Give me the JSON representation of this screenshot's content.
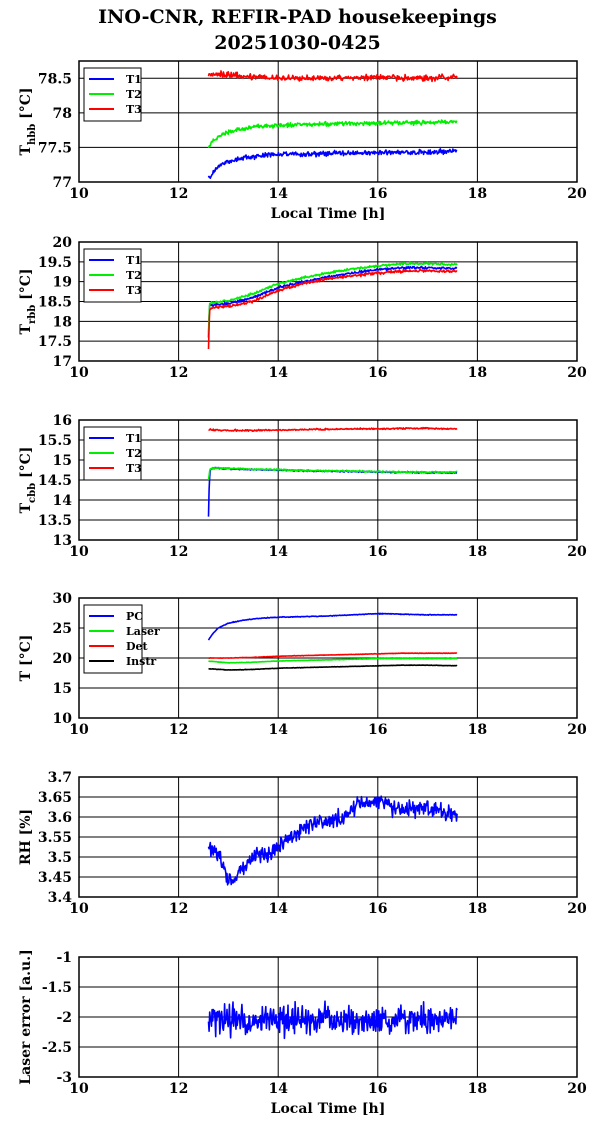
{
  "title": {
    "line1": "INO-CNR, REFIR-PAD housekeepings",
    "line2": "20251030-0425"
  },
  "chart_data": [
    {
      "type": "line",
      "id": "hbb",
      "xlabel": "Local Time [h]",
      "ylabel": "T_hbb [°C]",
      "ylabel_main": "T",
      "ylabel_sub": "hbb",
      "ylabel_rest": " [°C]",
      "xlim": [
        10,
        20
      ],
      "ylim": [
        77,
        78.75
      ],
      "xticks": [
        10,
        12,
        14,
        16,
        18,
        20
      ],
      "yticks": [
        77,
        77.5,
        78,
        78.5
      ],
      "ytick_labels": [
        "77",
        "77.5",
        "78",
        "78.5"
      ],
      "grid": true,
      "legend": "top-left",
      "series": [
        {
          "name": "T1",
          "color": "#0000ff",
          "x": [
            12.6,
            12.7,
            12.8,
            12.9,
            13.0,
            13.2,
            13.4,
            13.6,
            13.8,
            14.0,
            14.5,
            15.0,
            15.5,
            16.0,
            16.5,
            17.0,
            17.6
          ],
          "y": [
            77.05,
            77.15,
            77.22,
            77.27,
            77.3,
            77.33,
            77.36,
            77.38,
            77.39,
            77.4,
            77.4,
            77.41,
            77.42,
            77.42,
            77.43,
            77.43,
            77.45
          ],
          "noise": 0.03
        },
        {
          "name": "T2",
          "color": "#00ee00",
          "x": [
            12.6,
            12.7,
            12.8,
            12.9,
            13.0,
            13.2,
            13.4,
            13.6,
            13.8,
            14.0,
            14.5,
            15.0,
            15.5,
            16.0,
            16.5,
            17.0,
            17.6
          ],
          "y": [
            77.5,
            77.6,
            77.66,
            77.7,
            77.73,
            77.76,
            77.78,
            77.8,
            77.81,
            77.82,
            77.83,
            77.84,
            77.85,
            77.85,
            77.86,
            77.86,
            77.87
          ],
          "noise": 0.025
        },
        {
          "name": "T3",
          "color": "#ff0000",
          "x": [
            12.6,
            12.7,
            13.0,
            13.5,
            14.0,
            14.5,
            15.0,
            15.5,
            16.0,
            16.5,
            17.0,
            17.6
          ],
          "y": [
            78.55,
            78.57,
            78.55,
            78.52,
            78.51,
            78.5,
            78.5,
            78.51,
            78.52,
            78.51,
            78.5,
            78.52
          ],
          "noise": 0.035
        }
      ]
    },
    {
      "type": "line",
      "id": "rbb",
      "xlabel": "",
      "ylabel": "T_rbb [°C]",
      "ylabel_main": "T",
      "ylabel_sub": "rbb",
      "ylabel_rest": " [°C]",
      "xlim": [
        10,
        20
      ],
      "ylim": [
        17,
        20
      ],
      "xticks": [
        10,
        12,
        14,
        16,
        18,
        20
      ],
      "yticks": [
        17,
        17.5,
        18,
        18.5,
        19,
        19.5,
        20
      ],
      "ytick_labels": [
        "17",
        "17.5",
        "18",
        "18.5",
        "19",
        "19.5",
        "20"
      ],
      "grid": true,
      "legend": "top-left",
      "series": [
        {
          "name": "T1",
          "color": "#0000ff",
          "x": [
            12.6,
            12.62,
            12.7,
            13.0,
            13.5,
            14.0,
            14.5,
            15.0,
            15.5,
            16.0,
            16.5,
            17.0,
            17.6
          ],
          "y": [
            17.6,
            18.4,
            18.42,
            18.45,
            18.6,
            18.85,
            19.0,
            19.12,
            19.22,
            19.3,
            19.35,
            19.35,
            19.33
          ],
          "noise": 0.025
        },
        {
          "name": "T2",
          "color": "#00ee00",
          "x": [
            12.6,
            12.62,
            12.7,
            13.0,
            13.5,
            14.0,
            14.5,
            15.0,
            15.5,
            16.0,
            16.5,
            17.0,
            17.6
          ],
          "y": [
            17.7,
            18.45,
            18.48,
            18.52,
            18.7,
            18.95,
            19.1,
            19.22,
            19.32,
            19.4,
            19.45,
            19.45,
            19.43
          ],
          "noise": 0.025
        },
        {
          "name": "T3",
          "color": "#ff0000",
          "x": [
            12.6,
            12.61,
            12.62,
            12.7,
            13.0,
            13.5,
            14.0,
            14.5,
            15.0,
            15.5,
            16.0,
            16.5,
            17.0,
            17.6
          ],
          "y": [
            17.3,
            17.7,
            18.3,
            18.35,
            18.38,
            18.5,
            18.78,
            18.95,
            19.07,
            19.15,
            19.22,
            19.27,
            19.28,
            19.25
          ],
          "noise": 0.03
        }
      ]
    },
    {
      "type": "line",
      "id": "cbb",
      "xlabel": "",
      "ylabel": "T_cbb [°C]",
      "ylabel_main": "T",
      "ylabel_sub": "cbb",
      "ylabel_rest": " [°C]",
      "xlim": [
        10,
        20
      ],
      "ylim": [
        13,
        16
      ],
      "xticks": [
        10,
        12,
        14,
        16,
        18,
        20
      ],
      "yticks": [
        13,
        13.5,
        14,
        14.5,
        15,
        15.5,
        16
      ],
      "ytick_labels": [
        "13",
        "13.5",
        "14",
        "14.5",
        "15",
        "15.5",
        "16"
      ],
      "grid": true,
      "legend": "top-left",
      "series": [
        {
          "name": "T1",
          "color": "#0000ff",
          "x": [
            12.6,
            12.61,
            12.63,
            12.7,
            13.0,
            13.5,
            14.0,
            14.5,
            15.0,
            15.5,
            16.0,
            16.5,
            17.0,
            17.6
          ],
          "y": [
            13.6,
            14.2,
            14.75,
            14.8,
            14.78,
            14.76,
            14.75,
            14.73,
            14.72,
            14.71,
            14.7,
            14.69,
            14.69,
            14.68
          ],
          "noise": 0.015
        },
        {
          "name": "T2",
          "color": "#00ee00",
          "x": [
            12.6,
            12.62,
            12.63,
            12.7,
            13.0,
            13.5,
            14.0,
            14.5,
            15.0,
            15.5,
            16.0,
            16.5,
            17.0,
            17.6
          ],
          "y": [
            14.5,
            14.7,
            14.78,
            14.8,
            14.79,
            14.77,
            14.76,
            14.74,
            14.73,
            14.72,
            14.71,
            14.7,
            14.7,
            14.7
          ],
          "noise": 0.015
        },
        {
          "name": "T3",
          "color": "#ff0000",
          "x": [
            12.6,
            13.0,
            13.5,
            14.0,
            14.5,
            15.0,
            15.5,
            16.0,
            16.5,
            17.0,
            17.6
          ],
          "y": [
            15.76,
            15.74,
            15.74,
            15.75,
            15.76,
            15.77,
            15.78,
            15.78,
            15.79,
            15.79,
            15.78
          ],
          "noise": 0.015
        }
      ]
    },
    {
      "type": "line",
      "id": "temps",
      "xlabel": "",
      "ylabel": "T [°C]",
      "ylabel_main": "T [°C]",
      "ylabel_sub": "",
      "ylabel_rest": "",
      "xlim": [
        10,
        20
      ],
      "ylim": [
        10,
        30
      ],
      "xticks": [
        10,
        12,
        14,
        16,
        18,
        20
      ],
      "yticks": [
        10,
        15,
        20,
        25,
        30
      ],
      "ytick_labels": [
        "10",
        "15",
        "20",
        "25",
        "30"
      ],
      "grid": true,
      "legend": "top-left",
      "series": [
        {
          "name": "PC",
          "color": "#0000ff",
          "x": [
            12.6,
            12.7,
            12.8,
            13.0,
            13.3,
            13.6,
            14.0,
            14.5,
            15.0,
            15.5,
            16.0,
            16.5,
            17.0,
            17.6
          ],
          "y": [
            23.0,
            24.2,
            25.0,
            25.8,
            26.3,
            26.6,
            26.8,
            26.9,
            27.0,
            27.2,
            27.4,
            27.3,
            27.2,
            27.2
          ],
          "noise": 0.05
        },
        {
          "name": "Laser",
          "color": "#00ee00",
          "x": [
            12.6,
            13.0,
            13.5,
            14.0,
            14.5,
            15.0,
            15.5,
            16.0,
            16.5,
            17.0,
            17.6
          ],
          "y": [
            19.5,
            19.2,
            19.3,
            19.5,
            19.6,
            19.7,
            19.8,
            19.9,
            19.9,
            19.9,
            19.9
          ],
          "noise": 0.03
        },
        {
          "name": "Det",
          "color": "#ff0000",
          "x": [
            12.6,
            13.0,
            13.5,
            14.0,
            14.5,
            15.0,
            15.5,
            16.0,
            16.5,
            17.0,
            17.6
          ],
          "y": [
            20.0,
            20.0,
            20.1,
            20.3,
            20.4,
            20.5,
            20.6,
            20.7,
            20.8,
            20.8,
            20.8
          ],
          "noise": 0.03
        },
        {
          "name": "Instr",
          "color": "#000000",
          "x": [
            12.6,
            13.0,
            13.5,
            14.0,
            14.5,
            15.0,
            15.5,
            16.0,
            16.5,
            17.0,
            17.6
          ],
          "y": [
            18.2,
            18.0,
            18.1,
            18.3,
            18.4,
            18.5,
            18.6,
            18.7,
            18.8,
            18.8,
            18.7
          ],
          "noise": 0.03
        }
      ]
    },
    {
      "type": "line",
      "id": "rh",
      "xlabel": "",
      "ylabel": "RH [%]",
      "ylabel_main": "RH [%]",
      "ylabel_sub": "",
      "ylabel_rest": "",
      "xlim": [
        10,
        20
      ],
      "ylim": [
        3.4,
        3.7
      ],
      "xticks": [
        10,
        12,
        14,
        16,
        18,
        20
      ],
      "yticks": [
        3.4,
        3.45,
        3.5,
        3.55,
        3.6,
        3.65,
        3.7
      ],
      "ytick_labels": [
        "3.4",
        "3.45",
        "3.5",
        "3.55",
        "3.6",
        "3.65",
        "3.7"
      ],
      "grid": true,
      "legend": "none",
      "series": [
        {
          "name": "",
          "color": "#0000ff",
          "x": [
            12.6,
            12.8,
            13.0,
            13.2,
            13.5,
            13.8,
            14.0,
            14.3,
            14.6,
            15.0,
            15.3,
            15.6,
            16.0,
            16.4,
            16.8,
            17.2,
            17.6
          ],
          "y": [
            3.54,
            3.5,
            3.44,
            3.46,
            3.5,
            3.5,
            3.52,
            3.56,
            3.58,
            3.59,
            3.6,
            3.63,
            3.64,
            3.62,
            3.62,
            3.62,
            3.6
          ],
          "noise": 0.018
        }
      ]
    },
    {
      "type": "line",
      "id": "laser",
      "xlabel": "Local Time [h]",
      "ylabel": "Laser error [a.u.]",
      "ylabel_main": "Laser error [a.u.]",
      "ylabel_sub": "",
      "ylabel_rest": "",
      "xlim": [
        10,
        20
      ],
      "ylim": [
        -3,
        -1
      ],
      "xticks": [
        10,
        12,
        14,
        16,
        18,
        20
      ],
      "yticks": [
        -3,
        -2.5,
        -2,
        -1.5,
        -1
      ],
      "ytick_labels": [
        "-3",
        "-2.5",
        "-2",
        "-1.5",
        "-1"
      ],
      "grid": true,
      "legend": "none",
      "series": [
        {
          "name": "",
          "color": "#0000ff",
          "x": [
            12.6,
            17.6
          ],
          "y": [
            -2.05,
            -2.05
          ],
          "noise": 0.2
        }
      ]
    }
  ]
}
